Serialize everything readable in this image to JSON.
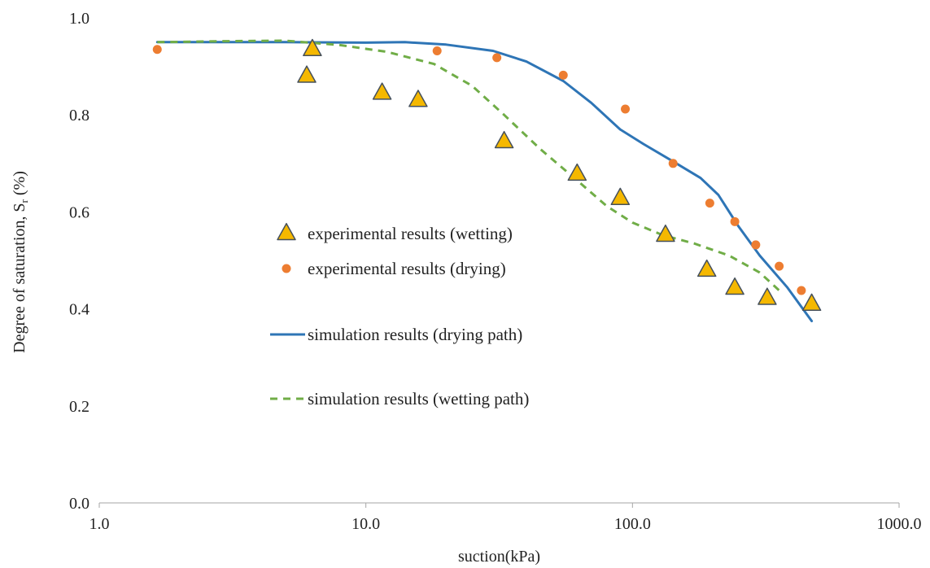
{
  "chart_data": {
    "type": "scatter",
    "title": "",
    "xlabel": "suction(kPa)",
    "ylabel_main": "Degree of saturation, S",
    "ylabel_sub": "r",
    "ylabel_unit": " (%)",
    "xscale": "log",
    "xlim": [
      1,
      1000
    ],
    "ylim": [
      0,
      1
    ],
    "x_ticks": [
      1,
      10,
      100,
      1000
    ],
    "x_tick_labels": [
      "1.0",
      "10.0",
      "100.0",
      "1000.0"
    ],
    "y_ticks": [
      0,
      0.2,
      0.4,
      0.6,
      0.8,
      1.0
    ],
    "y_tick_labels": [
      "0.0",
      "0.2",
      "0.4",
      "0.6",
      "0.8",
      "1.0"
    ],
    "grid": false,
    "legend_position": "center-left",
    "series": [
      {
        "name": "experimental results (wetting)",
        "kind": "marker-triangle",
        "color": "#F5B800",
        "stroke": "#45505C",
        "points": [
          [
            6.3,
            0.935
          ],
          [
            6.0,
            0.88
          ],
          [
            11.5,
            0.845
          ],
          [
            15.7,
            0.83
          ],
          [
            33,
            0.745
          ],
          [
            62,
            0.678
          ],
          [
            90,
            0.628
          ],
          [
            133,
            0.552
          ],
          [
            190,
            0.48
          ],
          [
            242,
            0.443
          ],
          [
            320,
            0.422
          ],
          [
            470,
            0.41
          ]
        ]
      },
      {
        "name": "experimental results  (drying)",
        "kind": "marker-circle",
        "color": "#ED7D31",
        "points": [
          [
            1.65,
            0.935
          ],
          [
            18.5,
            0.932
          ],
          [
            31,
            0.918
          ],
          [
            55,
            0.882
          ],
          [
            94,
            0.812
          ],
          [
            142,
            0.7
          ],
          [
            195,
            0.618
          ],
          [
            242,
            0.58
          ],
          [
            290,
            0.532
          ],
          [
            355,
            0.488
          ],
          [
            430,
            0.438
          ]
        ]
      },
      {
        "name": "simulation results (drying path)",
        "kind": "line-solid",
        "color": "#2E75B6",
        "points": [
          [
            1.65,
            0.95
          ],
          [
            5,
            0.95
          ],
          [
            10,
            0.949
          ],
          [
            14,
            0.95
          ],
          [
            20,
            0.945
          ],
          [
            30,
            0.932
          ],
          [
            40,
            0.91
          ],
          [
            55,
            0.87
          ],
          [
            70,
            0.825
          ],
          [
            90,
            0.77
          ],
          [
            110,
            0.74
          ],
          [
            140,
            0.706
          ],
          [
            180,
            0.67
          ],
          [
            210,
            0.635
          ],
          [
            250,
            0.57
          ],
          [
            300,
            0.51
          ],
          [
            380,
            0.445
          ],
          [
            470,
            0.375
          ]
        ]
      },
      {
        "name": "simulation results (wetting path)",
        "kind": "line-dashed",
        "color": "#70AD47",
        "points": [
          [
            1.65,
            0.95
          ],
          [
            3,
            0.952
          ],
          [
            5,
            0.953
          ],
          [
            8,
            0.944
          ],
          [
            12,
            0.93
          ],
          [
            18,
            0.905
          ],
          [
            25,
            0.86
          ],
          [
            33,
            0.8
          ],
          [
            45,
            0.73
          ],
          [
            62,
            0.665
          ],
          [
            80,
            0.612
          ],
          [
            100,
            0.578
          ],
          [
            130,
            0.552
          ],
          [
            170,
            0.535
          ],
          [
            230,
            0.51
          ],
          [
            300,
            0.475
          ],
          [
            360,
            0.435
          ]
        ]
      }
    ]
  }
}
